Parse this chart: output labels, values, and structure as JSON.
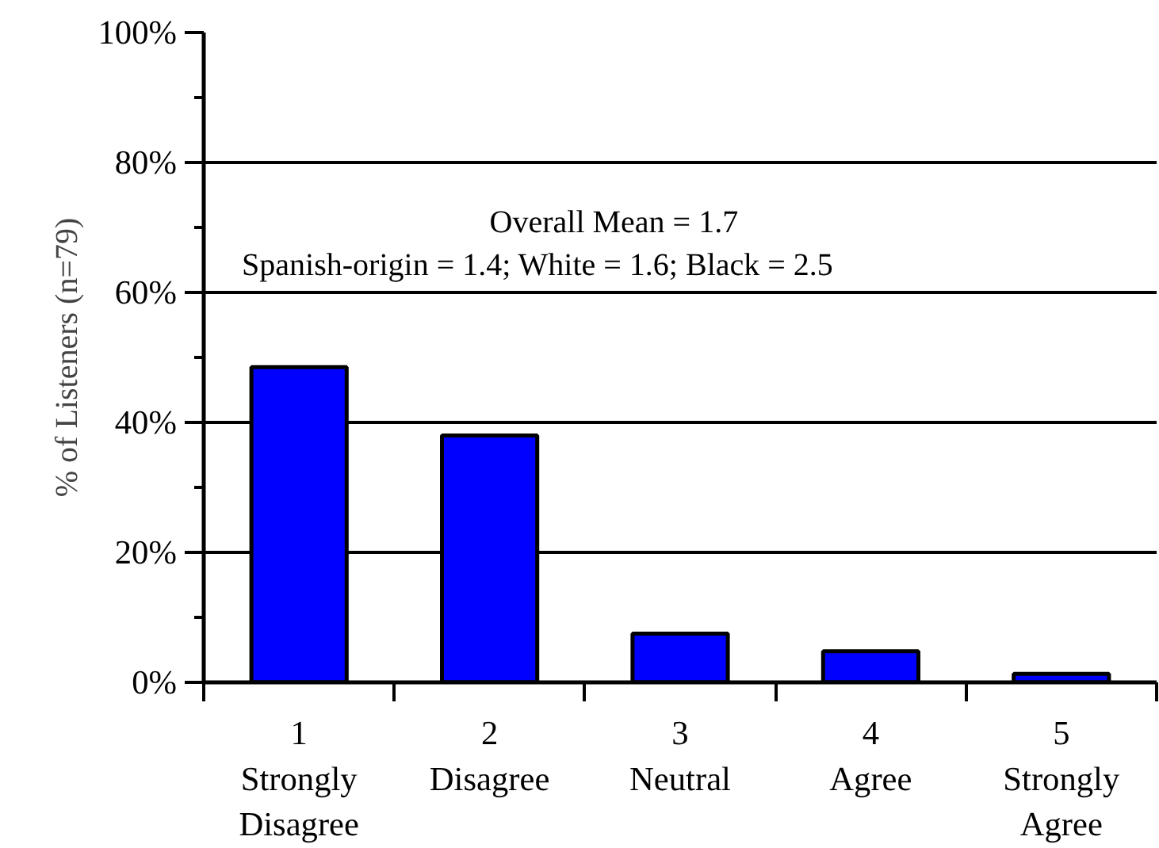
{
  "chart_data": {
    "type": "bar",
    "ylabel": "% of Listeners (n=79)",
    "categories": [
      "1\nStrongly\nDisagree",
      "2\nDisagree",
      "3\nNeutral",
      "4\nAgree",
      "5\nStrongly\nAgree"
    ],
    "values": [
      48.5,
      38,
      7.5,
      4.8,
      1.3
    ],
    "color": "#0000ff",
    "ylim": [
      0,
      100
    ],
    "yticks": [
      {
        "value": 0,
        "label": "0%"
      },
      {
        "value": 20,
        "label": "20%"
      },
      {
        "value": 40,
        "label": "40%"
      },
      {
        "value": 60,
        "label": "60%"
      },
      {
        "value": 80,
        "label": "80%"
      },
      {
        "value": 100,
        "label": "100%"
      }
    ],
    "grid": "y",
    "annotations": [
      "Overall Mean  = 1.7",
      "Spanish-origin = 1.4; White = 1.6; Black = 2.5"
    ]
  }
}
